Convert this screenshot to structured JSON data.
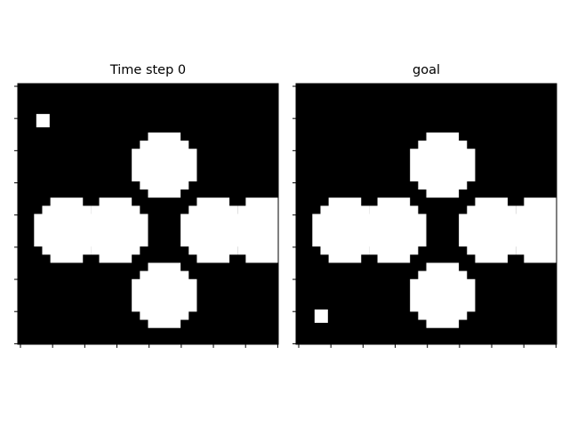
{
  "panels": [
    {
      "title": "Time step 0",
      "background": "#000000",
      "foreground": "#ffffff",
      "agent": {
        "col": 1,
        "row": 2
      },
      "obstacles": [
        {
          "col": 8,
          "row": 4
        },
        {
          "col": 2,
          "row": 8
        },
        {
          "col": 5,
          "row": 8
        },
        {
          "col": 11,
          "row": 8
        },
        {
          "col": 14,
          "row": 8
        },
        {
          "col": 8,
          "row": 12
        }
      ]
    },
    {
      "title": "goal",
      "background": "#000000",
      "foreground": "#ffffff",
      "agent": {
        "col": 1,
        "row": 14
      },
      "obstacles": [
        {
          "col": 8,
          "row": 4
        },
        {
          "col": 2,
          "row": 8
        },
        {
          "col": 5,
          "row": 8
        },
        {
          "col": 11,
          "row": 8
        },
        {
          "col": 14,
          "row": 8
        },
        {
          "col": 8,
          "row": 12
        }
      ]
    }
  ]
}
